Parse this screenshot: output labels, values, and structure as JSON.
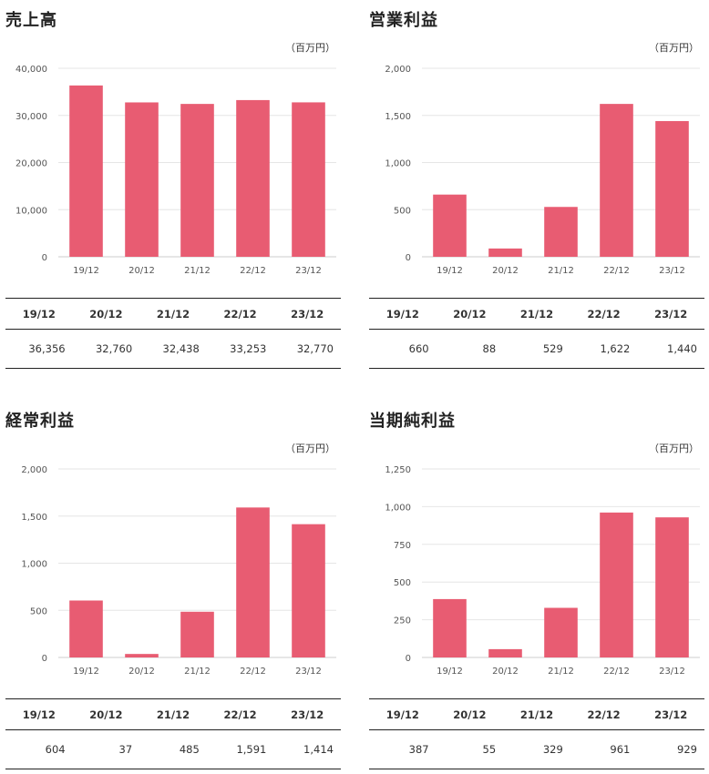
{
  "charts": [
    {
      "title": "売上高",
      "unit": "（百万円）",
      "chart_data": {
        "type": "bar",
        "categories": [
          "19/12",
          "20/12",
          "21/12",
          "22/12",
          "23/12"
        ],
        "values": [
          36356,
          32760,
          32438,
          33253,
          32770
        ],
        "ylim": [
          0,
          40000
        ],
        "yticks": [
          "0",
          "10,000",
          "20,000",
          "30,000",
          "40,000"
        ],
        "grid": true,
        "color": "#e85c72"
      },
      "table": {
        "headers": [
          "19/12",
          "20/12",
          "21/12",
          "22/12",
          "23/12"
        ],
        "values": [
          "36,356",
          "32,760",
          "32,438",
          "33,253",
          "32,770"
        ]
      }
    },
    {
      "title": "営業利益",
      "unit": "（百万円）",
      "chart_data": {
        "type": "bar",
        "categories": [
          "19/12",
          "20/12",
          "21/12",
          "22/12",
          "23/12"
        ],
        "values": [
          660,
          88,
          529,
          1622,
          1440
        ],
        "ylim": [
          0,
          2000
        ],
        "yticks": [
          "0",
          "500",
          "1,000",
          "1,500",
          "2,000"
        ],
        "grid": true,
        "color": "#e85c72"
      },
      "table": {
        "headers": [
          "19/12",
          "20/12",
          "21/12",
          "22/12",
          "23/12"
        ],
        "values": [
          "660",
          "88",
          "529",
          "1,622",
          "1,440"
        ]
      }
    },
    {
      "title": "経常利益",
      "unit": "（百万円）",
      "chart_data": {
        "type": "bar",
        "categories": [
          "19/12",
          "20/12",
          "21/12",
          "22/12",
          "23/12"
        ],
        "values": [
          604,
          37,
          485,
          1591,
          1414
        ],
        "ylim": [
          0,
          2000
        ],
        "yticks": [
          "0",
          "500",
          "1,000",
          "1,500",
          "2,000"
        ],
        "grid": true,
        "color": "#e85c72"
      },
      "table": {
        "headers": [
          "19/12",
          "20/12",
          "21/12",
          "22/12",
          "23/12"
        ],
        "values": [
          "604",
          "37",
          "485",
          "1,591",
          "1,414"
        ]
      }
    },
    {
      "title": "当期純利益",
      "unit": "（百万円）",
      "chart_data": {
        "type": "bar",
        "categories": [
          "19/12",
          "20/12",
          "21/12",
          "22/12",
          "23/12"
        ],
        "values": [
          387,
          55,
          329,
          961,
          929
        ],
        "ylim": [
          0,
          1250
        ],
        "yticks": [
          "0",
          "250",
          "500",
          "750",
          "1,000",
          "1,250"
        ],
        "grid": true,
        "color": "#e85c72"
      },
      "table": {
        "headers": [
          "19/12",
          "20/12",
          "21/12",
          "22/12",
          "23/12"
        ],
        "values": [
          "387",
          "55",
          "329",
          "961",
          "929"
        ]
      }
    }
  ]
}
